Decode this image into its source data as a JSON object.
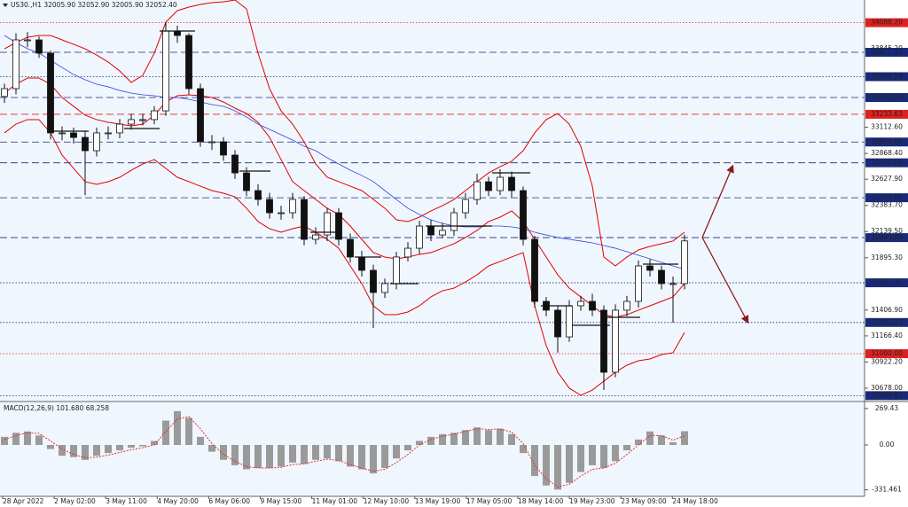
{
  "chart_data": [
    {
      "type": "candlestick",
      "title": "US30.,H1  32005.90 32052.90 32005.90 32052.40",
      "xtick_labels": [
        "28 Apr 2022",
        "2 May 02:00",
        "3 May 11:00",
        "4 May 20:00",
        "6 May 06:00",
        "9 May 15:00",
        "11 May 01:00",
        "12 May 10:00",
        "13 May 19:00",
        "17 May 05:00",
        "18 May 14:00",
        "19 May 23:00",
        "23 May 09:00",
        "24 May 18:00"
      ],
      "open": [
        33400,
        33473,
        33928,
        33928,
        33804,
        33060,
        33060,
        33018,
        32894,
        33060,
        33060,
        33142,
        33184,
        33184,
        33266,
        34011,
        33969,
        33473,
        32977,
        32977,
        32853,
        32687,
        32522,
        32439,
        32315,
        32315,
        32439,
        32067,
        32108,
        32315,
        32067,
        31902,
        31778,
        31571,
        31654,
        31902,
        31984,
        32191,
        32108,
        32150,
        32315,
        32439,
        32604,
        32522,
        32646,
        32522,
        32067,
        31488,
        31406,
        31157,
        31447,
        31488,
        31406,
        30827,
        31406,
        31488,
        31819,
        31778,
        31654,
        31654
      ],
      "high": [
        33520,
        33990,
        34000,
        33960,
        33830,
        33120,
        33110,
        33080,
        33110,
        33120,
        33190,
        33240,
        33240,
        33310,
        34093,
        34060,
        33990,
        33520,
        33040,
        33020,
        32900,
        32740,
        32580,
        32500,
        32380,
        32500,
        32470,
        32180,
        32360,
        32360,
        32120,
        31960,
        31830,
        31700,
        31950,
        32040,
        32240,
        32250,
        32220,
        32360,
        32500,
        32680,
        32650,
        32720,
        32700,
        32560,
        32100,
        31530,
        31450,
        31500,
        31540,
        31560,
        31450,
        31460,
        31540,
        31870,
        31880,
        31820,
        31720,
        32110
      ],
      "low": [
        33340,
        33420,
        33860,
        33760,
        33000,
        32990,
        32960,
        32480,
        32840,
        33000,
        33010,
        33090,
        33130,
        33140,
        33220,
        33900,
        33420,
        32930,
        32900,
        32800,
        32630,
        32470,
        32380,
        32260,
        32250,
        32260,
        32010,
        32020,
        32050,
        32010,
        31850,
        31720,
        31240,
        31520,
        31600,
        31860,
        31930,
        32050,
        32080,
        32100,
        32260,
        32390,
        32470,
        32480,
        32460,
        32010,
        31430,
        31350,
        31010,
        31110,
        31400,
        31350,
        30661,
        30780,
        31350,
        31430,
        31720,
        31600,
        31290,
        31600
      ],
      "close": [
        33473,
        33928,
        33928,
        33804,
        33060,
        33060,
        33018,
        32894,
        33060,
        33060,
        33142,
        33184,
        33184,
        33266,
        34011,
        33969,
        33473,
        32977,
        32977,
        32853,
        32687,
        32522,
        32439,
        32315,
        32315,
        32439,
        32067,
        32108,
        32315,
        32067,
        31902,
        31778,
        31571,
        31654,
        31902,
        31984,
        32191,
        32108,
        32150,
        32315,
        32439,
        32604,
        32522,
        32646,
        32522,
        32067,
        31488,
        31406,
        31157,
        31447,
        31488,
        31406,
        30827,
        31406,
        31488,
        31819,
        31778,
        31654,
        31654,
        32052
      ],
      "bands": {
        "color": "#e00000",
        "upper": [
          33845,
          33903,
          33953,
          33969,
          33969,
          33928,
          33887,
          33845,
          33787,
          33721,
          33638,
          33531,
          33597,
          33804,
          34093,
          34201,
          34234,
          34259,
          34275,
          34283,
          34300,
          34217,
          33804,
          33473,
          33266,
          33142,
          32977,
          32770,
          32646,
          32605,
          32563,
          32522,
          32439,
          32357,
          32249,
          32233,
          32274,
          32332,
          32381,
          32439,
          32522,
          32605,
          32687,
          32745,
          32795,
          32894,
          33060,
          33184,
          33241,
          33142,
          32935,
          32563,
          31902,
          31819,
          31902,
          31968,
          32001,
          32026,
          32051,
          32133
        ],
        "middle": [
          33432,
          33514,
          33572,
          33572,
          33514,
          33390,
          33308,
          33225,
          33184,
          33159,
          33142,
          33126,
          33142,
          33225,
          33349,
          33407,
          33415,
          33407,
          33390,
          33349,
          33291,
          33241,
          33159,
          33018,
          32811,
          32605,
          32522,
          32439,
          32357,
          32299,
          32191,
          32067,
          31943,
          31902,
          31885,
          31902,
          31927,
          31943,
          31984,
          32026,
          32084,
          32150,
          32233,
          32274,
          32332,
          32233,
          32067,
          31902,
          31736,
          31612,
          31530,
          31447,
          31364,
          31339,
          31364,
          31406,
          31447,
          31488,
          31530,
          31654
        ],
        "lower": [
          33060,
          33142,
          33184,
          33184,
          33060,
          32853,
          32729,
          32605,
          32580,
          32605,
          32646,
          32712,
          32770,
          32811,
          32729,
          32646,
          32605,
          32563,
          32522,
          32497,
          32464,
          32357,
          32233,
          32166,
          32133,
          32166,
          32191,
          32133,
          32067,
          31984,
          31819,
          31654,
          31447,
          31364,
          31364,
          31389,
          31447,
          31530,
          31587,
          31612,
          31670,
          31736,
          31819,
          31860,
          31902,
          31943,
          31447,
          31075,
          30827,
          30678,
          30612,
          30661,
          30744,
          30827,
          30893,
          30934,
          30951,
          30992,
          31009,
          31199
        ]
      },
      "ma": {
        "color": "#3344dd",
        "values": [
          33969,
          33903,
          33845,
          33804,
          33738,
          33671,
          33605,
          33556,
          33514,
          33490,
          33456,
          33432,
          33415,
          33407,
          33390,
          33390,
          33374,
          33349,
          33324,
          33308,
          33266,
          33208,
          33142,
          33093,
          33043,
          32993,
          32935,
          32894,
          32828,
          32770,
          32712,
          32663,
          32605,
          32522,
          32439,
          32357,
          32299,
          32249,
          32216,
          32191,
          32183,
          32183,
          32191,
          32191,
          32183,
          32166,
          32133,
          32108,
          32084,
          32067,
          32051,
          32034,
          32009,
          31984,
          31951,
          31918,
          31885,
          31852,
          31819,
          31786
        ]
      },
      "ylim": [
        30562,
        34300
      ],
      "yticks": [
        {
          "value": 33845.2,
          "label": "33845.20"
        },
        {
          "value": 33112.6,
          "label": "33112.60"
        },
        {
          "value": 32868.4,
          "label": "32868.40"
        },
        {
          "value": 32627.9,
          "label": "32627.90"
        },
        {
          "value": 32383.7,
          "label": "32383.70"
        },
        {
          "value": 32139.5,
          "label": "32139.50"
        },
        {
          "value": 31895.3,
          "label": "31895.30"
        },
        {
          "value": 31406.9,
          "label": "31406.90"
        },
        {
          "value": 31166.4,
          "label": "31166.40"
        },
        {
          "value": 30922.2,
          "label": "30922.20"
        },
        {
          "value": 30678,
          "label": "30678.00"
        }
      ],
      "levels": [
        {
          "value": 34088.2,
          "label": "34088.20",
          "color": "#e02020",
          "style": "dotted"
        },
        {
          "value": 33811.92,
          "label": "33811.92",
          "color": "#1a2a7a",
          "style": "dashed"
        },
        {
          "value": 33584.59,
          "label": "33584.59",
          "color": "#1a2a7a",
          "style": "dotted"
        },
        {
          "value": 33390,
          "label": "33390.00",
          "color": "#1a2a7a",
          "style": "dashed"
        },
        {
          "value": 33233.63,
          "label": "33233.63",
          "color": "#e02020",
          "style": "dashed"
        },
        {
          "value": 32975,
          "label": "32975.00",
          "color": "#1a2a7a",
          "style": "dashed"
        },
        {
          "value": 32781,
          "label": "32781.00",
          "color": "#1a2a7a",
          "style": "dashed"
        },
        {
          "value": 32455,
          "label": "32455.00",
          "color": "#1a2a7a",
          "style": "dashed"
        },
        {
          "value": 32083,
          "label": "32083.00",
          "color": "#1a2a7a",
          "style": "dashed"
        },
        {
          "value": 31661.46,
          "label": "31661.46",
          "color": "#1a2a7a",
          "style": "dotted"
        },
        {
          "value": 31291.23,
          "label": "31291.23",
          "color": "#1a2a7a",
          "style": "dotted"
        },
        {
          "value": 31000,
          "label": "31000.00",
          "color": "#e02020",
          "style": "dotted"
        },
        {
          "value": 30608.62,
          "label": "30608.62",
          "color": "#1a2a7a",
          "style": "dotted"
        }
      ]
    },
    {
      "type": "macd",
      "label": "MACD(12,26,9) 101.680 68.258",
      "color": "#9a9a9a",
      "signal_color": "#e03030",
      "values": [
        60,
        90,
        100,
        70,
        -30,
        -80,
        -90,
        -110,
        -80,
        -60,
        -40,
        -20,
        -10,
        30,
        180,
        250,
        200,
        60,
        -50,
        -110,
        -150,
        -180,
        -170,
        -170,
        -160,
        -130,
        -140,
        -110,
        -100,
        -120,
        -160,
        -180,
        -210,
        -170,
        -100,
        -40,
        30,
        60,
        80,
        90,
        110,
        130,
        110,
        120,
        80,
        -60,
        -230,
        -300,
        -330,
        -280,
        -200,
        -150,
        -170,
        -120,
        -40,
        40,
        100,
        70,
        20,
        101.68
      ],
      "signal": [
        40,
        70,
        90,
        85,
        30,
        -30,
        -70,
        -95,
        -90,
        -75,
        -55,
        -35,
        -20,
        0,
        100,
        190,
        210,
        120,
        10,
        -70,
        -120,
        -160,
        -170,
        -170,
        -165,
        -145,
        -140,
        -120,
        -105,
        -115,
        -145,
        -170,
        -195,
        -180,
        -130,
        -70,
        0,
        40,
        65,
        80,
        100,
        120,
        115,
        118,
        95,
        10,
        -150,
        -250,
        -310,
        -290,
        -230,
        -180,
        -170,
        -135,
        -70,
        0,
        70,
        70,
        35,
        68.258
      ],
      "ylim": [
        -380,
        308
      ],
      "yticks": [
        269.43,
        {
          "value": 0,
          "label": "0.00"
        },
        -331.461
      ]
    }
  ]
}
